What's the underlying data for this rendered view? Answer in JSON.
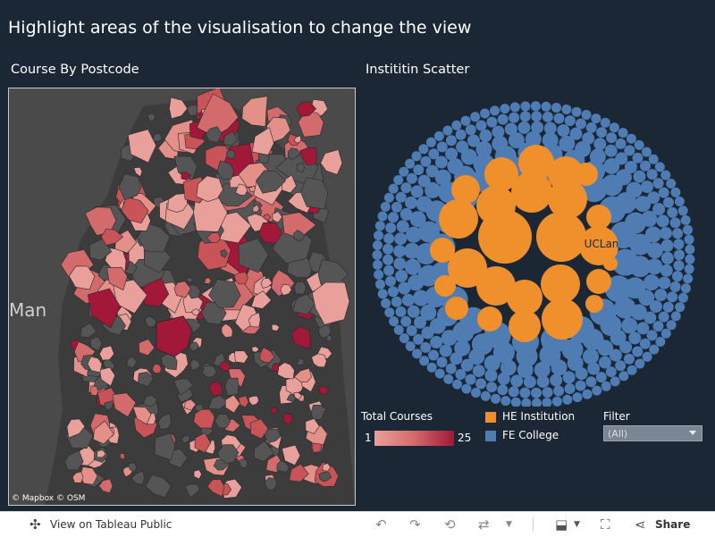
{
  "header": {
    "title": "Highlight areas of the visualisation to change the view"
  },
  "map_panel": {
    "title": "Course By Postcode",
    "place_label": "Man",
    "credit": "© Mapbox  © OSM",
    "colors": {
      "background": "#4a4a4a",
      "land_dark": "#3c3c3c",
      "low": "#e9a09a",
      "mid": "#d36a6c",
      "high": "#a11838"
    }
  },
  "scatter_panel": {
    "title": "Instititin Scatter",
    "highlight_label": "UCLan",
    "colors": {
      "he": "#f0902c",
      "fe": "#4f7db3"
    }
  },
  "legend": {
    "total_courses": {
      "title": "Total Courses",
      "min": "1",
      "max": "25"
    },
    "categories": [
      {
        "label": "HE Institution",
        "color": "#f0902c"
      },
      {
        "label": "FE College",
        "color": "#4f7db3"
      }
    ]
  },
  "filter": {
    "title": "Filter",
    "selected": "(All)"
  },
  "toolbar": {
    "view_label": "View on Tableau Public",
    "share_label": "Share",
    "icons": [
      "tableau-logo-icon",
      "undo-icon",
      "redo-icon",
      "revert-icon",
      "refresh-icon",
      "download-icon",
      "fullscreen-icon",
      "share-icon"
    ]
  }
}
